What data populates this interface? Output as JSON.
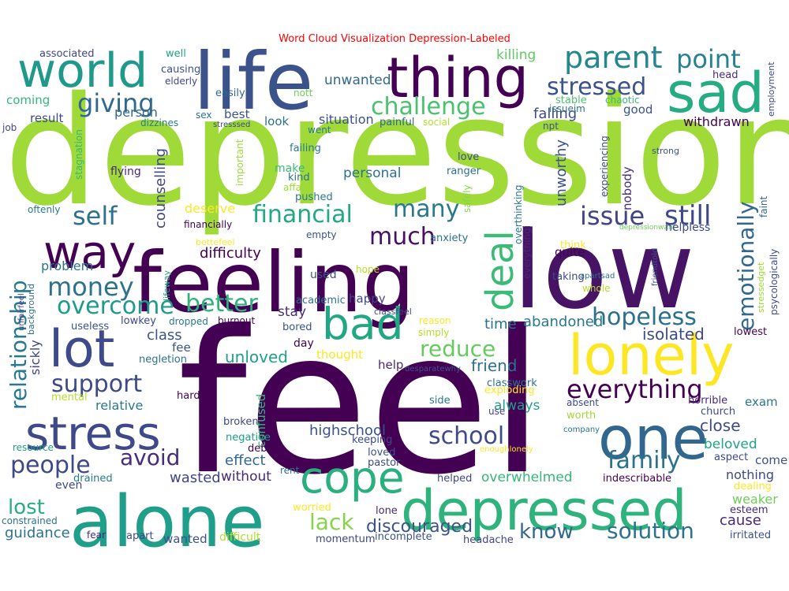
{
  "title": "Word Cloud Visualization Depression-Labeled",
  "words": [
    {
      "text": "depression",
      "color": "#a0da39"
    },
    {
      "text": "feel",
      "color": "#440154"
    },
    {
      "text": "feeling",
      "color": "#440154"
    },
    {
      "text": "low",
      "color": "#471365"
    },
    {
      "text": "life",
      "color": "#3b528b"
    },
    {
      "text": "alone",
      "color": "#1f9e89"
    },
    {
      "text": "thing",
      "color": "#440154"
    },
    {
      "text": "world",
      "color": "#1f9a8a"
    },
    {
      "text": "sad",
      "color": "#25ac82"
    },
    {
      "text": "one",
      "color": "#31668e"
    },
    {
      "text": "depressed",
      "color": "#2eb37c"
    },
    {
      "text": "lonely",
      "color": "#fde725"
    },
    {
      "text": "stress",
      "color": "#3e4989"
    },
    {
      "text": "bad",
      "color": "#22a785"
    },
    {
      "text": "lot",
      "color": "#3e4a89"
    },
    {
      "text": "way",
      "color": "#440154"
    },
    {
      "text": "cope",
      "color": "#2ab07f"
    },
    {
      "text": "deal",
      "color": "#3bbb75"
    },
    {
      "text": "parent",
      "color": "#24878e"
    },
    {
      "text": "point",
      "color": "#26828e"
    },
    {
      "text": "thing2",
      "color": "#440154"
    },
    {
      "text": "stressed",
      "color": "#3b528b"
    },
    {
      "text": "giving",
      "color": "#31688e"
    },
    {
      "text": "challenge",
      "color": "#4ac16d"
    },
    {
      "text": "issue",
      "color": "#414487"
    },
    {
      "text": "still",
      "color": "#3e4989"
    },
    {
      "text": "self",
      "color": "#2c728e"
    },
    {
      "text": "financial",
      "color": "#22a884"
    },
    {
      "text": "many",
      "color": "#2a788e"
    },
    {
      "text": "much",
      "color": "#471063"
    },
    {
      "text": "money",
      "color": "#2c728e"
    },
    {
      "text": "overcome",
      "color": "#1e9b8a"
    },
    {
      "text": "better",
      "color": "#2eb37c"
    },
    {
      "text": "hopeless",
      "color": "#2d708e"
    },
    {
      "text": "emotionally",
      "color": "#31688e"
    },
    {
      "text": "relationship",
      "color": "#2a788e"
    },
    {
      "text": "support",
      "color": "#3e4989"
    },
    {
      "text": "everything",
      "color": "#440154"
    },
    {
      "text": "reduce",
      "color": "#65cb5e"
    },
    {
      "text": "school",
      "color": "#3e4a89"
    },
    {
      "text": "family",
      "color": "#2c728e"
    },
    {
      "text": "people",
      "color": "#3e4989"
    },
    {
      "text": "avoid",
      "color": "#472d7b"
    },
    {
      "text": "lost",
      "color": "#29af7f"
    },
    {
      "text": "lack",
      "color": "#86d549"
    },
    {
      "text": "know",
      "color": "#31688e"
    },
    {
      "text": "solution",
      "color": "#2c728e"
    },
    {
      "text": "close",
      "color": "#3e4989"
    },
    {
      "text": "beloved",
      "color": "#20a386"
    },
    {
      "text": "discouraged",
      "color": "#3b528b"
    },
    {
      "text": "guidance",
      "color": "#2c728e"
    },
    {
      "text": "wasted",
      "color": "#414487"
    },
    {
      "text": "without",
      "color": "#482878"
    },
    {
      "text": "effect",
      "color": "#31688e"
    },
    {
      "text": "highschool",
      "color": "#3b528b"
    },
    {
      "text": "unloved",
      "color": "#1f9e89"
    },
    {
      "text": "friend",
      "color": "#2c728e"
    },
    {
      "text": "isolated",
      "color": "#3e4a89"
    },
    {
      "text": "abandoned",
      "color": "#2a788e"
    },
    {
      "text": "overwhelmed",
      "color": "#35b779"
    },
    {
      "text": "nothing",
      "color": "#3e4989"
    },
    {
      "text": "weaker",
      "color": "#6ece58"
    },
    {
      "text": "cause",
      "color": "#482878"
    },
    {
      "text": "counselling",
      "color": "#404688"
    },
    {
      "text": "unworthy",
      "color": "#3b528b"
    },
    {
      "text": "unwanted",
      "color": "#31688e"
    },
    {
      "text": "killing",
      "color": "#5ec962"
    },
    {
      "text": "falling",
      "color": "#3e4a89"
    },
    {
      "text": "withdrawn",
      "color": "#440154"
    },
    {
      "text": "situation",
      "color": "#3b528b"
    },
    {
      "text": "personal",
      "color": "#2c728e"
    },
    {
      "text": "difficulty",
      "color": "#440154"
    },
    {
      "text": "problem",
      "color": "#2c728e"
    },
    {
      "text": "class",
      "color": "#3b528b"
    },
    {
      "text": "stay",
      "color": "#472d7b"
    },
    {
      "text": "happy",
      "color": "#3e4989"
    },
    {
      "text": "time",
      "color": "#2c728e"
    },
    {
      "text": "help",
      "color": "#482878"
    },
    {
      "text": "always",
      "color": "#1f9e89"
    },
    {
      "text": "relative",
      "color": "#2a788e"
    },
    {
      "text": "fee",
      "color": "#3b528b"
    },
    {
      "text": "sickly",
      "color": "#404688"
    },
    {
      "text": "exam",
      "color": "#2a788e"
    },
    {
      "text": "deserve",
      "color": "#fde725"
    },
    {
      "text": "lost2",
      "color": "#29af7f"
    },
    {
      "text": "good",
      "color": "#3b528b"
    },
    {
      "text": "look",
      "color": "#2c728e"
    },
    {
      "text": "person",
      "color": "#31688e"
    },
    {
      "text": "best",
      "color": "#3b528b"
    },
    {
      "text": "result",
      "color": "#3e4989"
    },
    {
      "text": "coming",
      "color": "#35b779"
    },
    {
      "text": "associated",
      "color": "#404688"
    },
    {
      "text": "well",
      "color": "#20a386"
    },
    {
      "text": "causing",
      "color": "#3b528b"
    },
    {
      "text": "elderly",
      "color": "#404688"
    },
    {
      "text": "easily",
      "color": "#31688e"
    },
    {
      "text": "nott",
      "color": "#6ece58"
    },
    {
      "text": "issueim",
      "color": "#2c728e"
    },
    {
      "text": "head",
      "color": "#472d7b"
    },
    {
      "text": "stable",
      "color": "#4ac16d"
    },
    {
      "text": "chaotic",
      "color": "#3bbb75"
    },
    {
      "text": "employment",
      "color": "#3e4989"
    },
    {
      "text": "dizzines",
      "color": "#2a788e"
    },
    {
      "text": "sex",
      "color": "#2c728e"
    },
    {
      "text": "stresssed",
      "color": "#3e4989"
    },
    {
      "text": "went",
      "color": "#2a788e"
    },
    {
      "text": "painful",
      "color": "#31688e"
    },
    {
      "text": "social",
      "color": "#b5de2b"
    },
    {
      "text": "npt",
      "color": "#3b528b"
    },
    {
      "text": "job",
      "color": "#404688"
    },
    {
      "text": "stagnation",
      "color": "#35b779"
    },
    {
      "text": "failing",
      "color": "#2a788e"
    },
    {
      "text": "love",
      "color": "#3e4a89"
    },
    {
      "text": "ranger",
      "color": "#2c728e"
    },
    {
      "text": "strong",
      "color": "#3b528b"
    },
    {
      "text": "experiencing",
      "color": "#3e4989"
    },
    {
      "text": "flying",
      "color": "#482878"
    },
    {
      "text": "important",
      "color": "#a0da39"
    },
    {
      "text": "kind",
      "color": "#2c728e"
    },
    {
      "text": "make",
      "color": "#3bbb75"
    },
    {
      "text": "affair",
      "color": "#a0da39"
    },
    {
      "text": "pushed",
      "color": "#2a788e"
    },
    {
      "text": "safely",
      "color": "#86d549"
    },
    {
      "text": "nobody",
      "color": "#472d7b"
    },
    {
      "text": "oftenly",
      "color": "#2a788e"
    },
    {
      "text": "financially",
      "color": "#440154"
    },
    {
      "text": "bettefeel",
      "color": "#fde725"
    },
    {
      "text": "empty",
      "color": "#3b528b"
    },
    {
      "text": "anxiety",
      "color": "#2c728e"
    },
    {
      "text": "overthinking",
      "color": "#2a788e"
    },
    {
      "text": "everythingi",
      "color": "#482878"
    },
    {
      "text": "quite",
      "color": "#440154"
    },
    {
      "text": "think",
      "color": "#fde725"
    },
    {
      "text": "taking",
      "color": "#3e4989"
    },
    {
      "text": "depressionwant",
      "color": "#6ece58"
    },
    {
      "text": "helpless",
      "color": "#3e4989"
    },
    {
      "text": "faint",
      "color": "#31688e"
    },
    {
      "text": "psycologically",
      "color": "#3e4989"
    },
    {
      "text": "stressedget",
      "color": "#a0da39"
    },
    {
      "text": "friendtold",
      "color": "#3b528b"
    },
    {
      "text": "apartsad",
      "color": "#2c728e"
    },
    {
      "text": "whole",
      "color": "#b5de2b"
    },
    {
      "text": "used",
      "color": "#3b528b"
    },
    {
      "text": "hope",
      "color": "#b5de2b"
    },
    {
      "text": "lifeway",
      "color": "#22a884"
    },
    {
      "text": "academic",
      "color": "#2c728e"
    },
    {
      "text": "classfeel",
      "color": "#404688"
    },
    {
      "text": "background",
      "color": "#2c728e"
    },
    {
      "text": "unfairfeel",
      "color": "#404688"
    },
    {
      "text": "useless",
      "color": "#3b528b"
    },
    {
      "text": "lowkey",
      "color": "#3e4989"
    },
    {
      "text": "dropped",
      "color": "#2a788e"
    },
    {
      "text": "burnout",
      "color": "#440154"
    },
    {
      "text": "bored",
      "color": "#3b528b"
    },
    {
      "text": "reason",
      "color": "#fde725"
    },
    {
      "text": "simply",
      "color": "#b5de2b"
    },
    {
      "text": "lowest",
      "color": "#440154"
    },
    {
      "text": "day",
      "color": "#440154"
    },
    {
      "text": "thought",
      "color": "#fde725"
    },
    {
      "text": "negletion",
      "color": "#2c728e"
    },
    {
      "text": "desparatewhy",
      "color": "#3b528b"
    },
    {
      "text": "classwork",
      "color": "#2c728e"
    },
    {
      "text": "exploding",
      "color": "#fde725"
    },
    {
      "text": "side",
      "color": "#2a788e"
    },
    {
      "text": "use",
      "color": "#404688"
    },
    {
      "text": "absent",
      "color": "#3e4989"
    },
    {
      "text": "worth",
      "color": "#a0da39"
    },
    {
      "text": "horrible",
      "color": "#482878"
    },
    {
      "text": "church",
      "color": "#3e4989"
    },
    {
      "text": "company",
      "color": "#2c728e"
    },
    {
      "text": "enoughlonely",
      "color": "#fde725"
    },
    {
      "text": "mental",
      "color": "#b5de2b"
    },
    {
      "text": "hard",
      "color": "#440154"
    },
    {
      "text": "broken",
      "color": "#3e4989"
    },
    {
      "text": "negative",
      "color": "#1f9e89"
    },
    {
      "text": "confused",
      "color": "#35b779"
    },
    {
      "text": "debtsi",
      "color": "#440154"
    },
    {
      "text": "keeping",
      "color": "#3e4989"
    },
    {
      "text": "loved",
      "color": "#3b528b"
    },
    {
      "text": "pastor",
      "color": "#3e4989"
    },
    {
      "text": "rent",
      "color": "#2c728e"
    },
    {
      "text": "lone",
      "color": "#482878"
    },
    {
      "text": "helped",
      "color": "#404688"
    },
    {
      "text": "aspect",
      "color": "#3e4989"
    },
    {
      "text": "come",
      "color": "#3b528b"
    },
    {
      "text": "dealing",
      "color": "#fde725"
    },
    {
      "text": "indescribable",
      "color": "#440154"
    },
    {
      "text": "esteem",
      "color": "#482878"
    },
    {
      "text": "irritated",
      "color": "#3b528b"
    },
    {
      "text": "resource",
      "color": "#1f9e89"
    },
    {
      "text": "even",
      "color": "#404688"
    },
    {
      "text": "drained",
      "color": "#2a788e"
    },
    {
      "text": "worried",
      "color": "#fde725"
    },
    {
      "text": "constrained",
      "color": "#2c728e"
    },
    {
      "text": "fear",
      "color": "#482878"
    },
    {
      "text": "apart",
      "color": "#3e4989"
    },
    {
      "text": "wanted",
      "color": "#3b528b"
    },
    {
      "text": "difficult",
      "color": "#b5de2b"
    },
    {
      "text": "momentum",
      "color": "#3e4989"
    },
    {
      "text": "incomplete",
      "color": "#3b528b"
    },
    {
      "text": "headache",
      "color": "#404688"
    }
  ]
}
